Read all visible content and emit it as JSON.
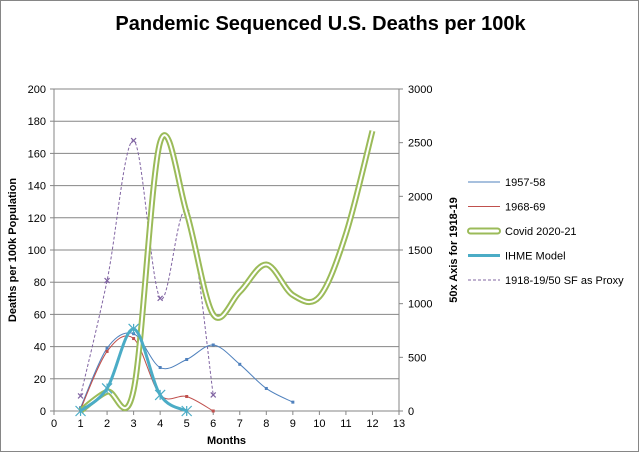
{
  "chart_data": {
    "type": "line",
    "title": "Pandemic Sequenced U.S. Deaths per 100k",
    "xlabel": "Months",
    "ylabel": "Deaths per 100k  Population",
    "y2label": "50x Axis for 1918-19",
    "xlim": [
      0,
      13
    ],
    "ylim": [
      0,
      200
    ],
    "y2lim": [
      0,
      3000
    ],
    "xticks": [
      "0",
      "1",
      "2",
      "3",
      "4",
      "5",
      "6",
      "7",
      "8",
      "9",
      "10",
      "11",
      "12",
      "13"
    ],
    "yticks": [
      "0",
      "20",
      "40",
      "60",
      "80",
      "100",
      "120",
      "140",
      "160",
      "180",
      "200"
    ],
    "y2ticks": [
      "0",
      "500",
      "1000",
      "1500",
      "2000",
      "2500",
      "3000"
    ],
    "grid": true,
    "legend": "right",
    "series": [
      {
        "name": "1957-58",
        "color": "#4F81BD",
        "axis": "left",
        "x": [
          1,
          2,
          3,
          4,
          5,
          6,
          7,
          8,
          9
        ],
        "values": [
          2,
          39,
          48,
          27,
          32,
          41,
          29,
          14,
          5.5
        ]
      },
      {
        "name": "1968-69",
        "color": "#C0504D",
        "axis": "left",
        "x": [
          1,
          2,
          3,
          4,
          5,
          6
        ],
        "values": [
          1,
          37,
          45,
          10,
          9,
          0
        ]
      },
      {
        "name": "Covid 2020-21",
        "color": "#9BBB59",
        "axis": "left",
        "x": [
          1,
          2,
          3,
          4,
          5,
          6,
          7,
          8,
          9,
          10,
          11,
          12
        ],
        "values": [
          0,
          12,
          13,
          167,
          123,
          60,
          74,
          91,
          72,
          71,
          110,
          174
        ]
      },
      {
        "name": "IHME Model",
        "color": "#4BACC6",
        "axis": "left",
        "x": [
          1,
          2,
          3,
          4,
          5
        ],
        "values": [
          0,
          14,
          51,
          10,
          0
        ]
      },
      {
        "name": "1918-19/50 SF as Proxy",
        "color": "#8064A2",
        "axis": "right",
        "x": [
          1,
          2,
          3,
          4,
          5,
          6
        ],
        "values": [
          140,
          1215,
          2520,
          1050,
          1850,
          150
        ]
      }
    ]
  }
}
